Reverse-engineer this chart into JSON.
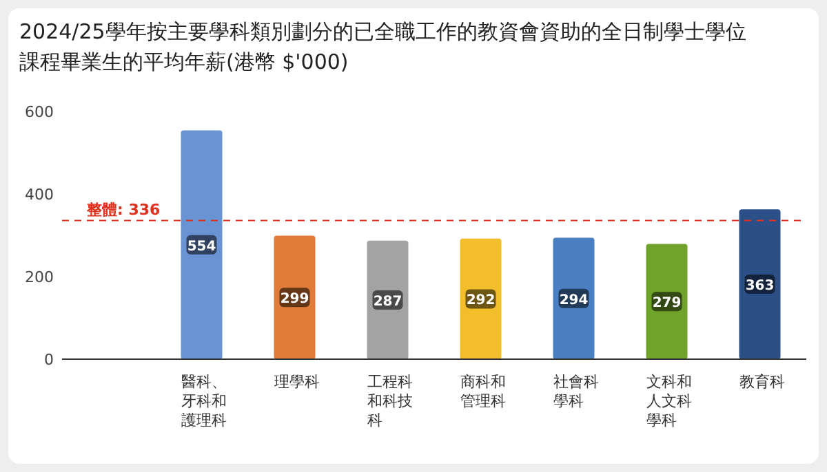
{
  "chart_data": {
    "type": "bar",
    "title": "2024/25學年按主要學科類別劃分的已全職工作的教資會資助的全日制學士學位課程畢業生的平均年薪(港幣 $'000)",
    "categories": [
      "醫科、牙科和護理科",
      "理學科",
      "工程科和科技科",
      "商科和管理科",
      "社會科學科",
      "文科和人文科學科",
      "教育科"
    ],
    "values": [
      554,
      299,
      287,
      292,
      294,
      279,
      363
    ],
    "colors": [
      "#6a93d4",
      "#e07b39",
      "#a3a3a3",
      "#f2bf2b",
      "#4a80c2",
      "#6fa32a",
      "#2d4f88"
    ],
    "ylim": [
      0,
      600
    ],
    "yticks": [
      0,
      200,
      400,
      600
    ],
    "data_labels": true,
    "ref_lines": [
      {
        "axis": "y",
        "value": 336,
        "label": "整體: 336",
        "color": "#e0301e",
        "line_style": "dashed"
      }
    ]
  }
}
